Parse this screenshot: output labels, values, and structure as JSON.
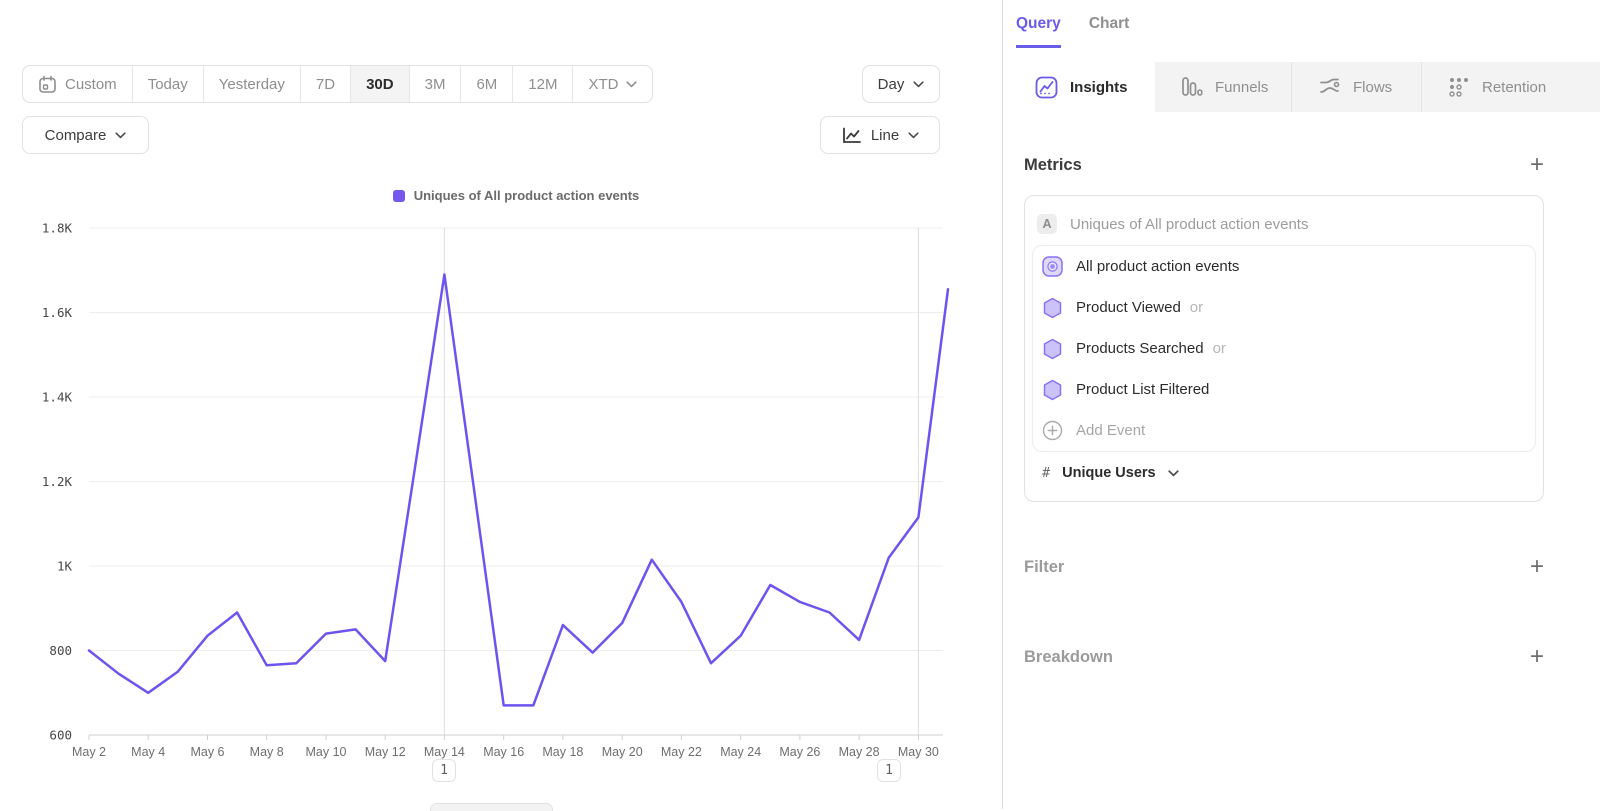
{
  "toolbar": {
    "ranges": [
      {
        "label": "Custom",
        "selected": false
      },
      {
        "label": "Today",
        "selected": false
      },
      {
        "label": "Yesterday",
        "selected": false
      },
      {
        "label": "7D",
        "selected": false
      },
      {
        "label": "30D",
        "selected": true
      },
      {
        "label": "3M",
        "selected": false
      },
      {
        "label": "6M",
        "selected": false
      },
      {
        "label": "12M",
        "selected": false
      },
      {
        "label": "XTD",
        "selected": false
      }
    ],
    "granularity_label": "Day",
    "compare_label": "Compare",
    "chart_type_label": "Line"
  },
  "chart_data": {
    "type": "line",
    "legend": "Uniques of All product action events",
    "line_color": "#6C55EE",
    "x": [
      "May 2",
      "May 3",
      "May 4",
      "May 5",
      "May 6",
      "May 7",
      "May 8",
      "May 9",
      "May 10",
      "May 11",
      "May 12",
      "May 13",
      "May 14",
      "May 15",
      "May 16",
      "May 17",
      "May 18",
      "May 19",
      "May 20",
      "May 21",
      "May 22",
      "May 23",
      "May 24",
      "May 25",
      "May 26",
      "May 27",
      "May 28",
      "May 29",
      "May 30",
      "May 31"
    ],
    "values": [
      800,
      745,
      700,
      750,
      835,
      890,
      765,
      770,
      840,
      850,
      775,
      1230,
      1690,
      1180,
      670,
      670,
      860,
      795,
      865,
      1015,
      915,
      770,
      835,
      955,
      915,
      890,
      825,
      1020,
      1115,
      1655
    ],
    "ylim": [
      600,
      1800
    ],
    "ytick_values": [
      600,
      800,
      1000,
      1200,
      1400,
      1600,
      1800
    ],
    "ytick_labels": [
      "600",
      "800",
      "1K",
      "1.2K",
      "1.4K",
      "1.6K",
      "1.8K"
    ],
    "x_label_every": 2,
    "grid": "horizontal",
    "legend_position": "top-center",
    "annotation_lines": [
      12,
      28
    ],
    "annotations": [
      {
        "label": "1",
        "index": 12
      },
      {
        "label": "1",
        "index": 27
      }
    ]
  },
  "panel": {
    "top_tabs": {
      "query": "Query",
      "chart": "Chart"
    },
    "report_tabs": [
      {
        "label": "Insights",
        "active": true
      },
      {
        "label": "Funnels",
        "active": false
      },
      {
        "label": "Flows",
        "active": false
      },
      {
        "label": "Retention",
        "active": false
      }
    ],
    "metrics": {
      "title": "Metrics",
      "add": "+"
    },
    "metric_card": {
      "badge": "A",
      "title": "Uniques of All product action events",
      "events": [
        {
          "name": "All product action events",
          "suffix": "",
          "icon": "custom-event"
        },
        {
          "name": "Product Viewed",
          "suffix": "or",
          "icon": "event-hexagon"
        },
        {
          "name": "Products Searched",
          "suffix": "or",
          "icon": "event-hexagon"
        },
        {
          "name": "Product List Filtered",
          "suffix": "",
          "icon": "event-hexagon"
        }
      ],
      "add_event_label": "Add Event",
      "aggregation": {
        "prefix": "#",
        "label": "Unique Users"
      }
    },
    "filter": {
      "title": "Filter",
      "add": "+"
    },
    "breakdown": {
      "title": "Breakdown",
      "add": "+"
    }
  },
  "colors": {
    "accent_purple": "#6A5BE8",
    "line_purple": "#6C55EE",
    "hexagon_fill": "#CBC3F8",
    "hexagon_stroke": "#8474F2",
    "inactive_tab_bg": "#F3F3F4",
    "gridline": "#EDEDEE"
  }
}
